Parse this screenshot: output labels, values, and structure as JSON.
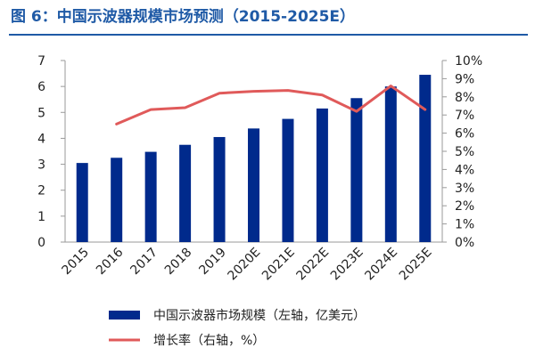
{
  "title": "图 6：中国示波器规模市场预测（2015-2025E）",
  "chart_data": {
    "type": "bar",
    "title": "图 6：中国示波器规模市场预测（2015-2025E）",
    "categories": [
      "2015",
      "2016",
      "2017",
      "2018",
      "2019",
      "2020E",
      "2021E",
      "2022E",
      "2023E",
      "2024E",
      "2025E"
    ],
    "series": [
      {
        "name": "中国示波器市场规模（左轴，亿美元）",
        "type": "bar",
        "axis": "left",
        "color": "#002a8c",
        "values": [
          3.05,
          3.25,
          3.48,
          3.75,
          4.05,
          4.38,
          4.75,
          5.15,
          5.55,
          6.0,
          6.45
        ]
      },
      {
        "name": "增长率（右轴，%）",
        "type": "line",
        "axis": "right",
        "color": "#e05a5a",
        "values": [
          null,
          6.5,
          7.3,
          7.4,
          8.2,
          8.3,
          8.35,
          8.1,
          7.2,
          8.6,
          7.3
        ]
      }
    ],
    "left_axis": {
      "min": 0,
      "max": 7,
      "ticks": [
        "0",
        "1",
        "2",
        "3",
        "4",
        "5",
        "6",
        "7"
      ]
    },
    "right_axis": {
      "min": 0,
      "max": 10,
      "ticks": [
        "0%",
        "1%",
        "2%",
        "3%",
        "4%",
        "5%",
        "6%",
        "7%",
        "8%",
        "9%",
        "10%"
      ]
    },
    "legend": [
      {
        "label": "中国示波器市场规模（左轴，亿美元）",
        "kind": "bar",
        "color": "#002a8c"
      },
      {
        "label": "增长率（右轴，%）",
        "kind": "line",
        "color": "#e05a5a"
      }
    ],
    "legend_position": "bottom",
    "grid": false
  }
}
